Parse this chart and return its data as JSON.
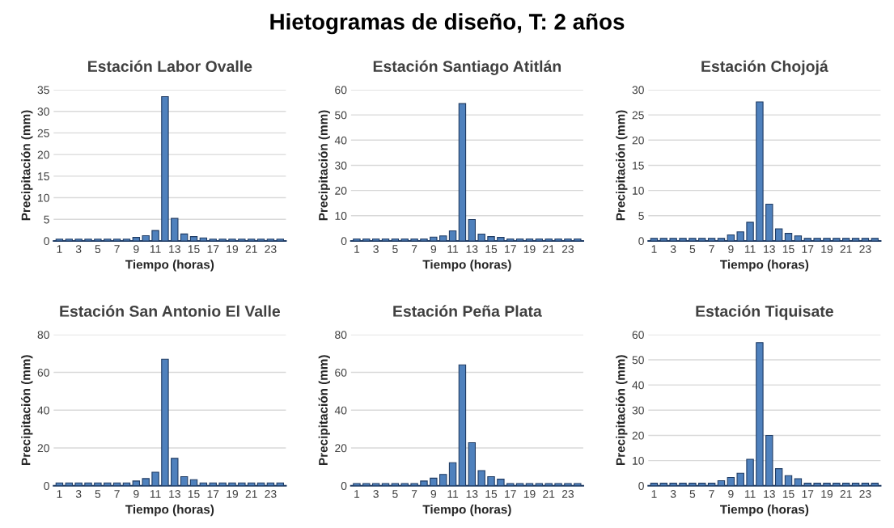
{
  "chart_data": [
    {
      "type": "bar",
      "title": "Estación Labor Ovalle",
      "xlabel": "Tiempo (horas)",
      "ylabel": "Precipitación (mm)",
      "annotations": [
        "Hietogramas de diseño, T: 2 años"
      ],
      "categories": [
        "1",
        null,
        "3",
        null,
        "5",
        null,
        "7",
        null,
        "9",
        null,
        "11",
        null,
        "13",
        null,
        "15",
        null,
        "17",
        null,
        "19",
        null,
        "21",
        null,
        "23",
        null
      ],
      "color": "#4f81bd",
      "ylim": [
        0,
        35
      ],
      "yticks": [
        0,
        5,
        10,
        15,
        20,
        25,
        30,
        35
      ],
      "grid": "y",
      "values": [
        0.4,
        0.4,
        0.4,
        0.4,
        0.4,
        0.4,
        0.4,
        0.4,
        0.8,
        1.2,
        2.4,
        33.4,
        5.2,
        1.6,
        1.0,
        0.7,
        0.4,
        0.4,
        0.4,
        0.4,
        0.4,
        0.4,
        0.4,
        0.4
      ]
    },
    {
      "type": "bar",
      "title": "Estación Santiago Atitlán",
      "xlabel": "Tiempo (horas)",
      "ylabel": "Precipitación (mm)",
      "categories": [
        "1",
        null,
        "3",
        null,
        "5",
        null,
        "7",
        null,
        "9",
        null,
        "11",
        null,
        "13",
        null,
        "15",
        null,
        "17",
        null,
        "19",
        null,
        "21",
        null,
        "23",
        null
      ],
      "color": "#4f81bd",
      "ylim": [
        0,
        60
      ],
      "yticks": [
        0,
        10,
        20,
        30,
        40,
        50,
        60
      ],
      "grid": "y",
      "values": [
        0.8,
        0.8,
        0.8,
        0.8,
        0.8,
        0.8,
        0.8,
        0.8,
        1.5,
        2.0,
        4.0,
        54.5,
        8.5,
        2.7,
        1.7,
        1.4,
        0.8,
        0.8,
        0.8,
        0.8,
        0.8,
        0.8,
        0.8,
        0.8
      ]
    },
    {
      "type": "bar",
      "title": "Estación Chojojá",
      "xlabel": "Tiempo (horas)",
      "ylabel": "Precipitación (mm)",
      "categories": [
        "1",
        null,
        "3",
        null,
        "5",
        null,
        "7",
        null,
        "9",
        null,
        "11",
        null,
        "13",
        null,
        "15",
        null,
        "17",
        null,
        "19",
        null,
        "21",
        null,
        "23",
        null
      ],
      "color": "#4f81bd",
      "ylim": [
        0,
        30
      ],
      "yticks": [
        0,
        5,
        10,
        15,
        20,
        25,
        30
      ],
      "grid": "y",
      "values": [
        0.5,
        0.5,
        0.5,
        0.5,
        0.5,
        0.5,
        0.5,
        0.5,
        1.2,
        1.8,
        3.7,
        27.6,
        7.3,
        2.4,
        1.5,
        1.0,
        0.5,
        0.5,
        0.5,
        0.5,
        0.5,
        0.5,
        0.5,
        0.5
      ]
    },
    {
      "type": "bar",
      "title": "Estación San Antonio El Valle",
      "xlabel": "Tiempo (horas)",
      "ylabel": "Precipitación (mm)",
      "categories": [
        "1",
        null,
        "3",
        null,
        "5",
        null,
        "7",
        null,
        "9",
        null,
        "11",
        null,
        "13",
        null,
        "15",
        null,
        "17",
        null,
        "19",
        null,
        "21",
        null,
        "23",
        null
      ],
      "color": "#4f81bd",
      "ylim": [
        0,
        80
      ],
      "yticks": [
        0,
        20,
        40,
        60,
        80
      ],
      "grid": "y",
      "values": [
        1.5,
        1.5,
        1.5,
        1.5,
        1.5,
        1.5,
        1.5,
        1.5,
        2.5,
        3.8,
        7.2,
        67,
        14.5,
        4.8,
        3.2,
        1.5,
        1.5,
        1.5,
        1.5,
        1.5,
        1.5,
        1.5,
        1.5,
        1.5
      ]
    },
    {
      "type": "bar",
      "title": "Estación Peña Plata",
      "xlabel": "Tiempo (horas)",
      "ylabel": "Precipitación (mm)",
      "categories": [
        "1",
        null,
        "3",
        null,
        "5",
        null,
        "7",
        null,
        "9",
        null,
        "11",
        null,
        "13",
        null,
        "15",
        null,
        "17",
        null,
        "19",
        null,
        "21",
        null,
        "23",
        null
      ],
      "color": "#4f81bd",
      "ylim": [
        0,
        80
      ],
      "yticks": [
        0,
        20,
        40,
        60,
        80
      ],
      "grid": "y",
      "values": [
        1.2,
        1.2,
        1.2,
        1.2,
        1.2,
        1.2,
        1.2,
        2.5,
        4,
        6,
        12.2,
        64,
        22.8,
        8,
        4.8,
        3.5,
        1.2,
        1.2,
        1.2,
        1.2,
        1.2,
        1.2,
        1.2,
        1.2
      ]
    },
    {
      "type": "bar",
      "title": "Estación Tiquisate",
      "xlabel": "Tiempo (horas)",
      "ylabel": "Precipitación (mm)",
      "categories": [
        "1",
        null,
        "3",
        null,
        "5",
        null,
        "7",
        null,
        "9",
        null,
        "11",
        null,
        "13",
        null,
        "15",
        null,
        "17",
        null,
        "19",
        null,
        "21",
        null,
        "23",
        null
      ],
      "color": "#4f81bd",
      "ylim": [
        0,
        60
      ],
      "yticks": [
        0,
        10,
        20,
        30,
        40,
        50,
        60
      ],
      "grid": "y",
      "values": [
        1.0,
        1.0,
        1.0,
        1.0,
        1.0,
        1.0,
        1.0,
        2.0,
        3.3,
        5.0,
        10.5,
        56.8,
        20,
        6.8,
        4.0,
        2.8,
        1.0,
        1.0,
        1.0,
        1.0,
        1.0,
        1.0,
        1.0,
        1.0
      ]
    }
  ]
}
